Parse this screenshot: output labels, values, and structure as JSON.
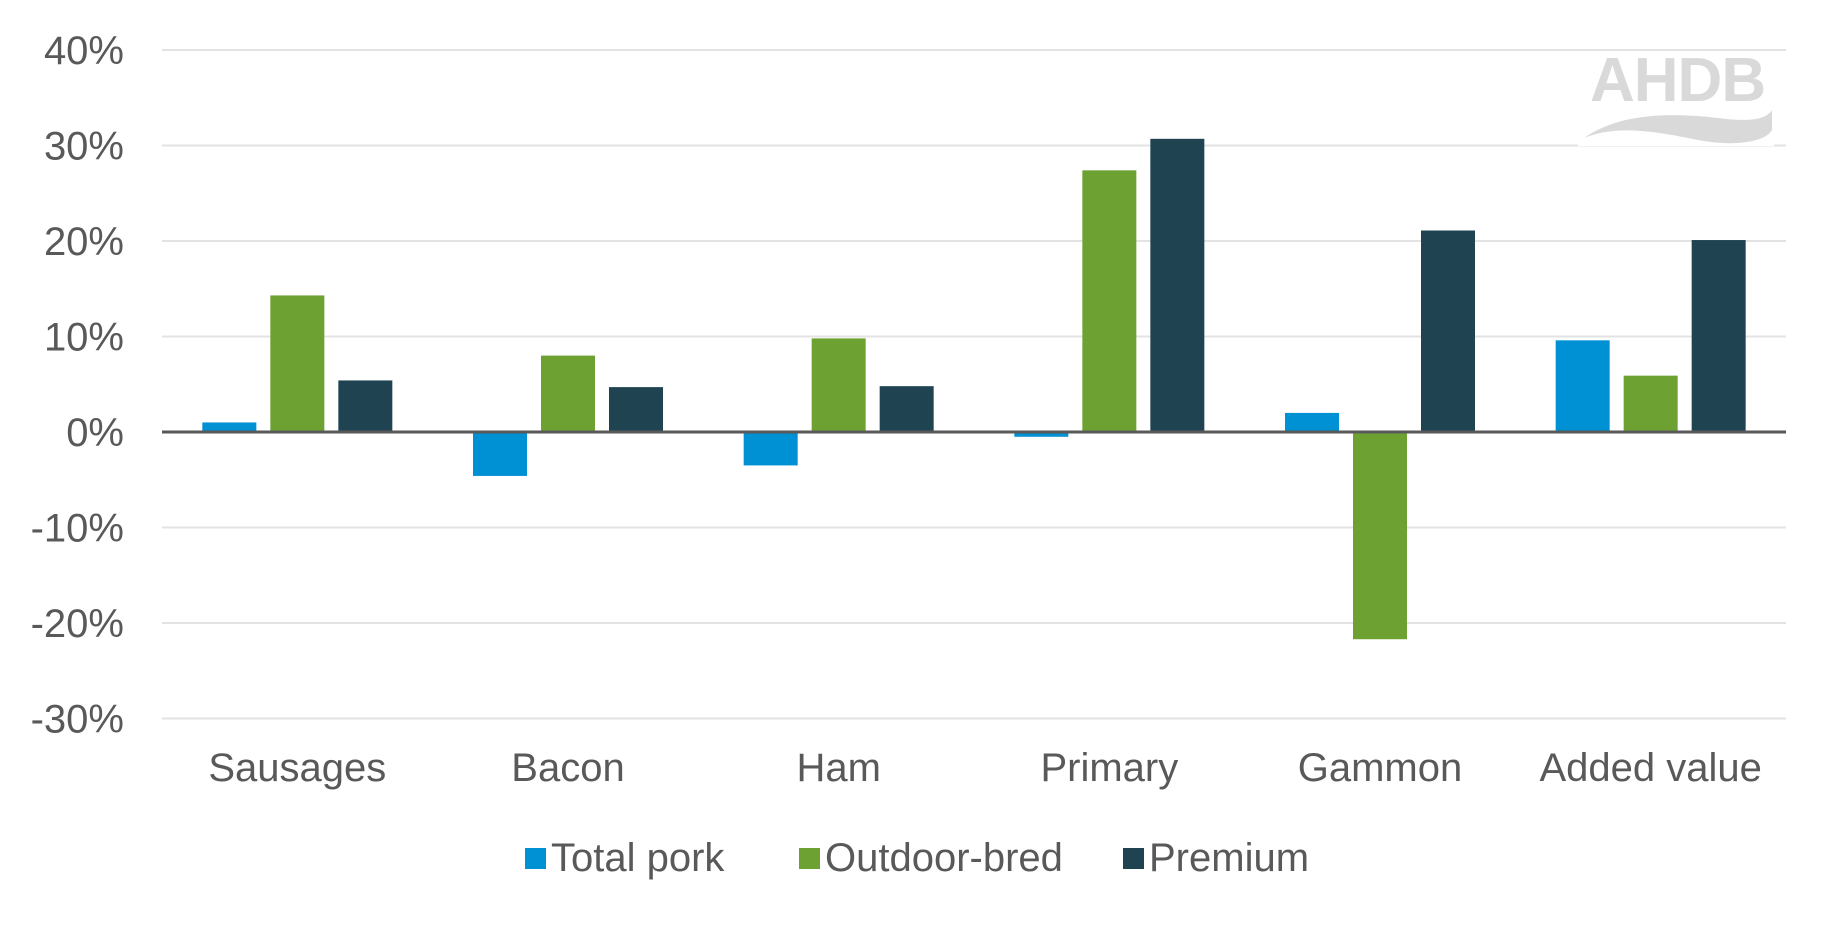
{
  "chart_data": {
    "type": "bar",
    "title": "",
    "xlabel": "",
    "ylabel": "",
    "categories": [
      "Sausages",
      "Bacon",
      "Ham",
      "Primary",
      "Gammon",
      "Added value"
    ],
    "series": [
      {
        "name": "Total pork",
        "color": "#0090D4",
        "values": [
          1.0,
          -4.6,
          -3.5,
          -0.5,
          2.0,
          9.6
        ]
      },
      {
        "name": "Outdoor-bred",
        "color": "#6DA232",
        "values": [
          14.3,
          8.0,
          9.8,
          27.4,
          -21.7,
          5.9
        ]
      },
      {
        "name": "Premium",
        "color": "#204352",
        "values": [
          5.4,
          4.7,
          4.8,
          30.7,
          21.1,
          20.1
        ]
      }
    ],
    "ylim": [
      -30,
      40
    ],
    "yticks": [
      40,
      30,
      20,
      10,
      0,
      -10,
      -20,
      -30
    ],
    "ytick_labels": [
      "40%",
      "30%",
      "20%",
      "10%",
      "0%",
      "-10%",
      "-20%",
      "-30%"
    ],
    "grid": true,
    "legend_position": "bottom",
    "unit": "%"
  },
  "logo": {
    "text": "AHDB"
  },
  "legend": [
    {
      "label": "Total pork",
      "color": "#0090D4"
    },
    {
      "label": "Outdoor-bred",
      "color": "#6DA232"
    },
    {
      "label": "Premium",
      "color": "#204352"
    }
  ],
  "colors": {
    "gridline": "#e3e3e3",
    "zero_axis": "#595959",
    "text": "#595959",
    "logo": "#d9d9d9"
  }
}
